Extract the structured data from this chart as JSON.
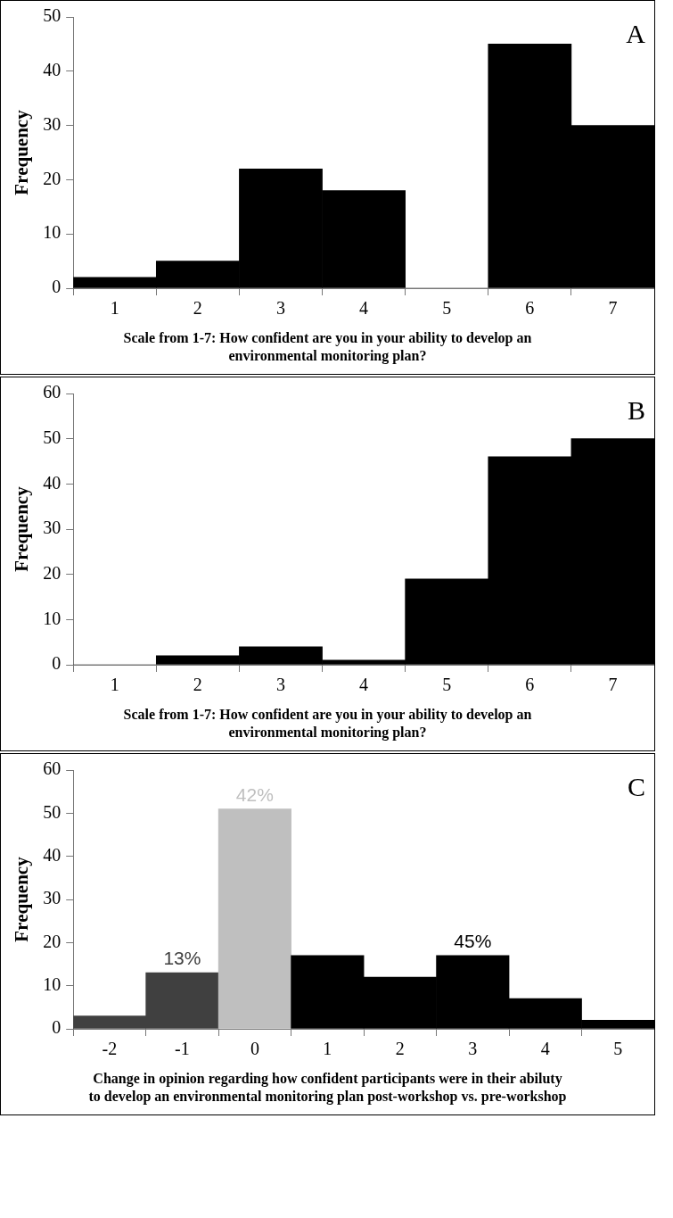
{
  "chart_data": [
    {
      "type": "bar",
      "categories": [
        "1",
        "2",
        "3",
        "4",
        "5",
        "6",
        "7"
      ],
      "values": [
        2,
        5,
        22,
        18,
        0,
        45,
        30
      ],
      "color": "#000000",
      "ylim": [
        0,
        50
      ],
      "yticks": [
        0,
        10,
        20,
        30,
        40,
        50
      ],
      "ylabel": "Frequency",
      "xlabel": "Scale from 1-7: How confident are you in your ability to develop an environmental monitoring plan?",
      "annotations": [
        "A"
      ],
      "grid": false,
      "legend": false
    },
    {
      "type": "bar",
      "categories": [
        "1",
        "2",
        "3",
        "4",
        "5",
        "6",
        "7"
      ],
      "values": [
        0,
        2,
        4,
        1,
        19,
        46,
        50
      ],
      "color": "#000000",
      "ylim": [
        0,
        60
      ],
      "yticks": [
        0,
        10,
        20,
        30,
        40,
        50,
        60
      ],
      "ylabel": "Frequency",
      "xlabel": "Scale from 1-7: How confident are you in your ability to develop an environmental monitoring plan?",
      "annotations": [
        "B"
      ],
      "grid": false,
      "legend": false
    },
    {
      "type": "bar",
      "categories": [
        "-2",
        "-1",
        "0",
        "1",
        "2",
        "3",
        "4",
        "5"
      ],
      "values": [
        3,
        13,
        51,
        17,
        12,
        17,
        7,
        2
      ],
      "colors": [
        "#404040",
        "#404040",
        "#bfbfbf",
        "#000000",
        "#000000",
        "#000000",
        "#000000",
        "#000000"
      ],
      "ylim": [
        0,
        60
      ],
      "yticks": [
        0,
        10,
        20,
        30,
        40,
        50,
        60
      ],
      "ylabel": "Frequency",
      "xlabel": "Change in opinion regarding how confident participants were in their abiluty to develop an environmental monitoring plan post-workshop vs. pre-workshop",
      "annotations": [
        "C",
        {
          "text": "13%",
          "x": "-1",
          "y": 13
        },
        {
          "text": "42%",
          "x": "0",
          "y": 51
        },
        {
          "text": "45%",
          "x": "3",
          "y": 17
        }
      ],
      "grid": false,
      "legend": false
    }
  ]
}
